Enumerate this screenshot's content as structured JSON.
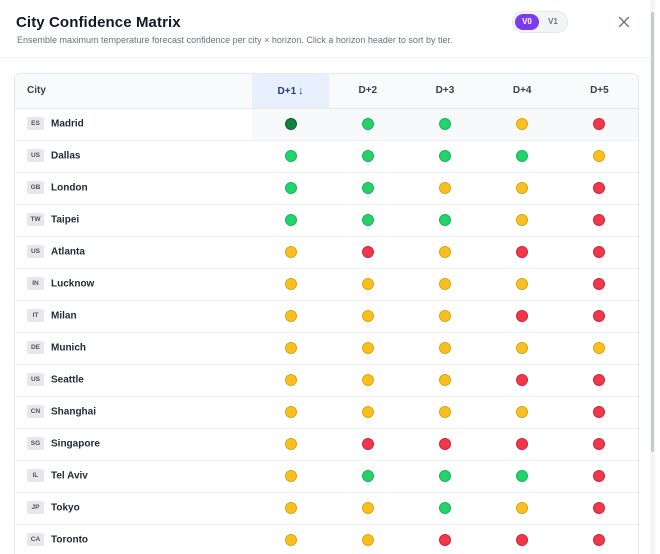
{
  "header": {
    "title": "City Confidence Matrix",
    "subtitle": "Ensemble maximum temperature forecast confidence per city × horizon. Click a horizon header to sort by tier.",
    "versions": [
      "V0",
      "V1"
    ],
    "active_version": "V0",
    "close_icon": "close-icon"
  },
  "table": {
    "city_header": "City",
    "horizons": [
      "D+1",
      "D+2",
      "D+3",
      "D+4",
      "D+5"
    ],
    "sorted_horizon": "D+1",
    "sort_arrow": "↓",
    "tier_colors": {
      "dark-green": "#15803d",
      "green": "#22d36b",
      "yellow": "#fbbf24",
      "red": "#f0384c"
    },
    "rows": [
      {
        "code": "ES",
        "city": "Madrid",
        "tiers": [
          "dark-green",
          "green",
          "green",
          "yellow",
          "red"
        ]
      },
      {
        "code": "US",
        "city": "Dallas",
        "tiers": [
          "green",
          "green",
          "green",
          "green",
          "yellow"
        ]
      },
      {
        "code": "GB",
        "city": "London",
        "tiers": [
          "green",
          "green",
          "yellow",
          "yellow",
          "red"
        ]
      },
      {
        "code": "TW",
        "city": "Taipei",
        "tiers": [
          "green",
          "green",
          "green",
          "yellow",
          "red"
        ]
      },
      {
        "code": "US",
        "city": "Atlanta",
        "tiers": [
          "yellow",
          "red",
          "yellow",
          "red",
          "red"
        ]
      },
      {
        "code": "IN",
        "city": "Lucknow",
        "tiers": [
          "yellow",
          "yellow",
          "yellow",
          "yellow",
          "red"
        ]
      },
      {
        "code": "IT",
        "city": "Milan",
        "tiers": [
          "yellow",
          "yellow",
          "yellow",
          "red",
          "red"
        ]
      },
      {
        "code": "DE",
        "city": "Munich",
        "tiers": [
          "yellow",
          "yellow",
          "yellow",
          "yellow",
          "yellow"
        ]
      },
      {
        "code": "US",
        "city": "Seattle",
        "tiers": [
          "yellow",
          "yellow",
          "yellow",
          "red",
          "red"
        ]
      },
      {
        "code": "CN",
        "city": "Shanghai",
        "tiers": [
          "yellow",
          "yellow",
          "yellow",
          "yellow",
          "red"
        ]
      },
      {
        "code": "SG",
        "city": "Singapore",
        "tiers": [
          "yellow",
          "red",
          "red",
          "red",
          "red"
        ]
      },
      {
        "code": "IL",
        "city": "Tel Aviv",
        "tiers": [
          "yellow",
          "green",
          "green",
          "green",
          "red"
        ]
      },
      {
        "code": "JP",
        "city": "Tokyo",
        "tiers": [
          "yellow",
          "yellow",
          "green",
          "yellow",
          "red"
        ]
      },
      {
        "code": "CA",
        "city": "Toronto",
        "tiers": [
          "yellow",
          "yellow",
          "red",
          "red",
          "red"
        ]
      }
    ]
  }
}
